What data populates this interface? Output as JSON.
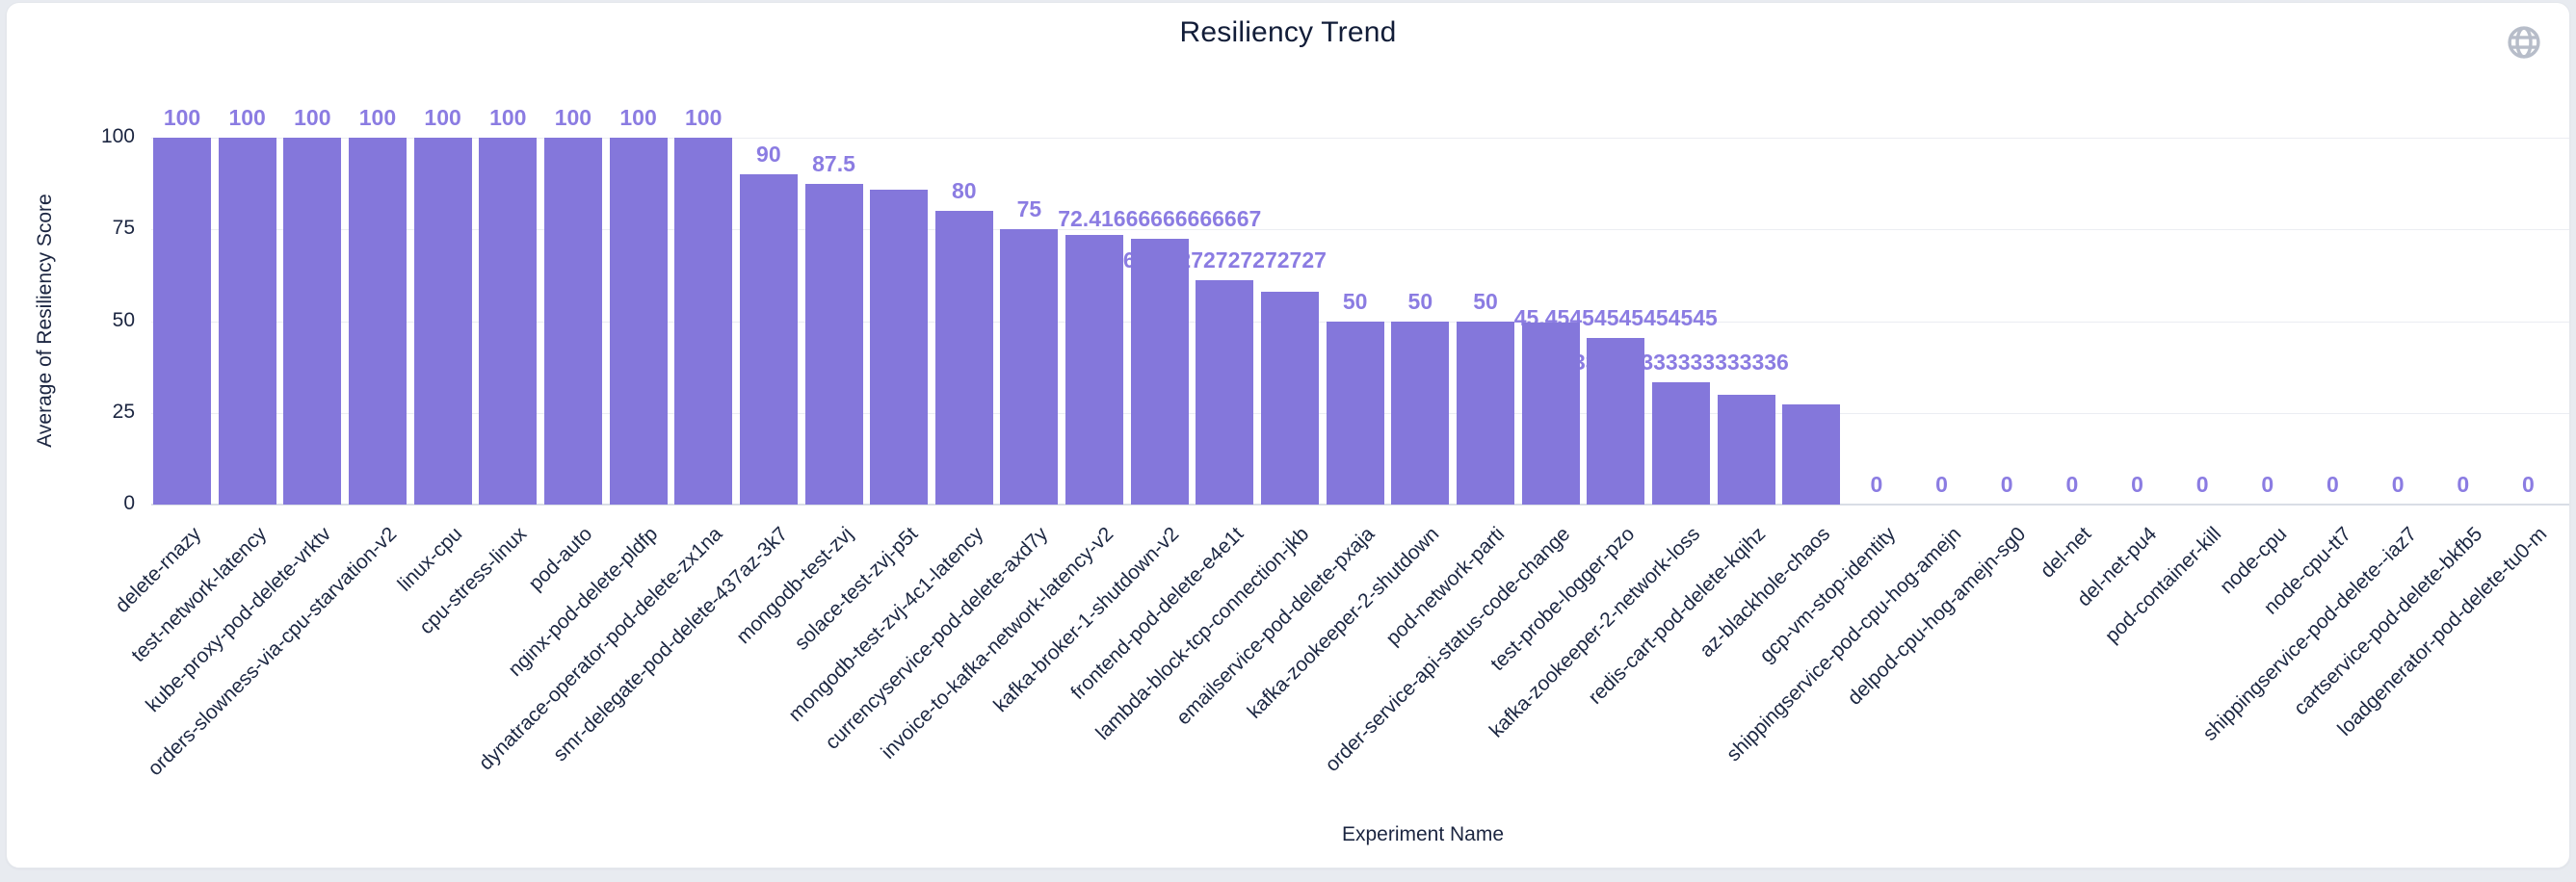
{
  "page": {
    "background_color": "#e8ebf0",
    "card_color": "#ffffff",
    "card_border_color": "#e4e7ec"
  },
  "header": {
    "globe_icon": "globe-icon",
    "globe_color": "#b7bdc9"
  },
  "chart_data": {
    "type": "bar",
    "title": "Resiliency Trend",
    "xlabel": "Experiment Name",
    "ylabel": "Average of Resiliency Score",
    "ylim": [
      0,
      100
    ],
    "yticks": [
      0,
      25,
      50,
      75,
      100
    ],
    "grid": true,
    "legend": "none",
    "bar_color": "#8477db",
    "value_label_color": "#8b7ce2",
    "axis_text_color": "#1b2540",
    "grid_color": "#ebedf2",
    "axis_line_color": "#d9dde5",
    "categories": [
      "delete-rnazy",
      "test-network-latency",
      "kube-proxy-pod-delete-vrktv",
      "orders-slowness-via-cpu-starvation-v2",
      "linux-cpu",
      "cpu-stress-linux",
      "pod-auto",
      "nginx-pod-delete-pldfp",
      "dynatrace-operator-pod-delete-zx1na",
      "smr-delegate-pod-delete-437az-3k7",
      "mongodb-test-zvj",
      "solace-test-zvj-p5t",
      "mongodb-test-zvj-4c1-latency",
      "currencyservice-pod-delete-axd7y",
      "invoice-to-kafka-network-latency-v2",
      "kafka-broker-1-shutdown-v2",
      "frontend-pod-delete-e4e1t",
      "lambda-block-tcp-connection-jkb",
      "emailservice-pod-delete-pxaja",
      "kafka-zookeeper-2-shutdown",
      "pod-network-parti",
      "order-service-api-status-code-change",
      "test-probe-logger-pzo",
      "kafka-zookeeper-2-network-loss",
      "redis-cart-pod-delete-kqihz",
      "az-blackhole-chaos",
      "gcp-vm-stop-identity",
      "shippingservice-pod-cpu-hog-amejn",
      "delpod-cpu-hog-amejn-sg0",
      "del-net",
      "del-net-pu4",
      "pod-container-kill",
      "node-cpu",
      "node-cpu-tt7",
      "shippingservice-pod-delete--iaz7",
      "cartservice-pod-delete-bkfb5",
      "loadgenerator-pod-delete-tu0-m"
    ],
    "values": [
      100,
      100,
      100,
      100,
      100,
      100,
      100,
      100,
      100,
      90,
      87.5,
      85.8,
      80,
      75,
      73.4,
      72.41666666666667,
      61.27272727272727,
      58,
      50,
      50,
      50,
      49.5,
      45.45454545454545,
      33.333333333333336,
      29.8,
      27.2,
      0,
      0,
      0,
      0,
      0,
      0,
      0,
      0,
      0,
      0,
      0
    ],
    "visible_value_labels": [
      "100",
      "100",
      "100",
      "100",
      "100",
      "100",
      "100",
      "100",
      "100",
      "90",
      "87.5",
      "",
      "80",
      "75",
      "",
      "72.41666666666667",
      "61.27272727272727",
      "",
      "50",
      "50",
      "50",
      "",
      "45.45454545454545",
      "33.333333333333336",
      "",
      "",
      "0",
      "0",
      "0",
      "0",
      "0",
      "0",
      "0",
      "0",
      "0",
      "0",
      "0"
    ]
  }
}
